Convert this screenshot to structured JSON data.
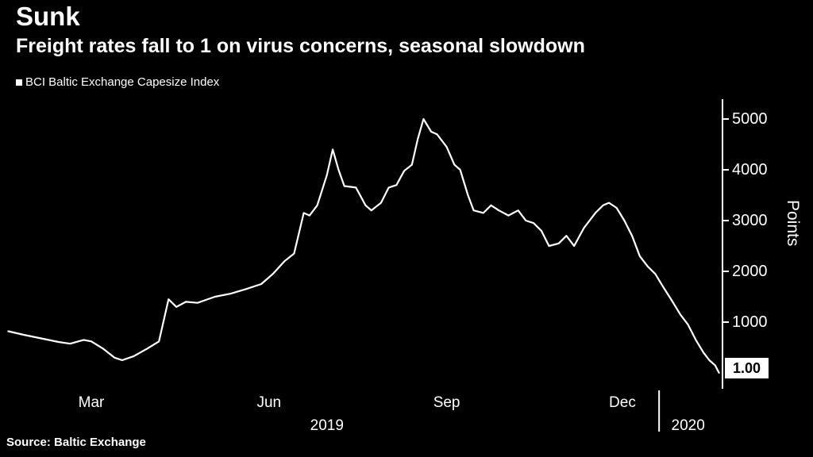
{
  "header": {
    "title": "Sunk",
    "subtitle": "Freight rates fall to 1 on virus concerns, seasonal slowdown"
  },
  "legend": {
    "label": "BCI Baltic Exchange Capesize Index"
  },
  "footer": {
    "source": "Source: Baltic Exchange"
  },
  "colors": {
    "background": "#000000",
    "line": "#ffffff",
    "axis": "#ffffff",
    "badge_bg": "#ffffff",
    "badge_text": "#000000"
  },
  "chart_data": {
    "type": "line",
    "title": "Sunk",
    "subtitle": "Freight rates fall to 1 on virus concerns, seasonal slowdown",
    "series_name": "BCI Baltic Exchange Capesize Index",
    "ylabel": "Points",
    "xlabel": "",
    "ylim": [
      0,
      5400
    ],
    "yticks": [
      1000,
      2000,
      3000,
      4000,
      5000
    ],
    "x_domain": [
      "2019-01-16",
      "2020-01-21"
    ],
    "month_ticks": [
      {
        "label": "Mar",
        "date": "2019-03-01"
      },
      {
        "label": "Jun",
        "date": "2019-06-01"
      },
      {
        "label": "Sep",
        "date": "2019-09-01"
      },
      {
        "label": "Dec",
        "date": "2019-12-01"
      }
    ],
    "year_ticks": [
      {
        "label": "2019",
        "date": "2019-07-01"
      },
      {
        "label": "2020",
        "date": "2020-01-04"
      }
    ],
    "year_divider_date": "2019-12-20",
    "last_value_label": "1.00",
    "points": [
      [
        "2019-01-17",
        820
      ],
      [
        "2019-01-25",
        750
      ],
      [
        "2019-02-03",
        680
      ],
      [
        "2019-02-12",
        610
      ],
      [
        "2019-02-18",
        575
      ],
      [
        "2019-02-25",
        650
      ],
      [
        "2019-03-01",
        620
      ],
      [
        "2019-03-07",
        480
      ],
      [
        "2019-03-13",
        300
      ],
      [
        "2019-03-17",
        250
      ],
      [
        "2019-03-23",
        330
      ],
      [
        "2019-03-30",
        480
      ],
      [
        "2019-04-05",
        620
      ],
      [
        "2019-04-10",
        1450
      ],
      [
        "2019-04-14",
        1300
      ],
      [
        "2019-04-19",
        1400
      ],
      [
        "2019-04-25",
        1380
      ],
      [
        "2019-05-04",
        1500
      ],
      [
        "2019-05-12",
        1560
      ],
      [
        "2019-05-20",
        1650
      ],
      [
        "2019-05-28",
        1750
      ],
      [
        "2019-06-03",
        1950
      ],
      [
        "2019-06-09",
        2200
      ],
      [
        "2019-06-14",
        2350
      ],
      [
        "2019-06-19",
        3150
      ],
      [
        "2019-06-22",
        3100
      ],
      [
        "2019-06-26",
        3300
      ],
      [
        "2019-07-01",
        3900
      ],
      [
        "2019-07-04",
        4400
      ],
      [
        "2019-07-07",
        4000
      ],
      [
        "2019-07-10",
        3680
      ],
      [
        "2019-07-16",
        3650
      ],
      [
        "2019-07-21",
        3300
      ],
      [
        "2019-07-24",
        3200
      ],
      [
        "2019-07-29",
        3350
      ],
      [
        "2019-08-02",
        3650
      ],
      [
        "2019-08-06",
        3700
      ],
      [
        "2019-08-10",
        3980
      ],
      [
        "2019-08-14",
        4100
      ],
      [
        "2019-08-17",
        4600
      ],
      [
        "2019-08-20",
        5000
      ],
      [
        "2019-08-24",
        4750
      ],
      [
        "2019-08-27",
        4700
      ],
      [
        "2019-09-01",
        4450
      ],
      [
        "2019-09-05",
        4100
      ],
      [
        "2019-09-08",
        4000
      ],
      [
        "2019-09-12",
        3500
      ],
      [
        "2019-09-15",
        3200
      ],
      [
        "2019-09-20",
        3150
      ],
      [
        "2019-09-24",
        3300
      ],
      [
        "2019-09-28",
        3200
      ],
      [
        "2019-10-03",
        3100
      ],
      [
        "2019-10-08",
        3200
      ],
      [
        "2019-10-12",
        3000
      ],
      [
        "2019-10-16",
        2950
      ],
      [
        "2019-10-20",
        2800
      ],
      [
        "2019-10-24",
        2500
      ],
      [
        "2019-10-29",
        2550
      ],
      [
        "2019-11-02",
        2700
      ],
      [
        "2019-11-06",
        2500
      ],
      [
        "2019-11-11",
        2850
      ],
      [
        "2019-11-17",
        3150
      ],
      [
        "2019-11-21",
        3300
      ],
      [
        "2019-11-24",
        3350
      ],
      [
        "2019-11-28",
        3250
      ],
      [
        "2019-12-02",
        3000
      ],
      [
        "2019-12-06",
        2700
      ],
      [
        "2019-12-10",
        2300
      ],
      [
        "2019-12-14",
        2100
      ],
      [
        "2019-12-18",
        1950
      ],
      [
        "2019-12-22",
        1700
      ],
      [
        "2019-12-27",
        1400
      ],
      [
        "2019-12-31",
        1150
      ],
      [
        "2020-01-04",
        950
      ],
      [
        "2020-01-08",
        650
      ],
      [
        "2020-01-12",
        400
      ],
      [
        "2020-01-15",
        250
      ],
      [
        "2020-01-18",
        150
      ],
      [
        "2020-01-20",
        1
      ]
    ]
  }
}
